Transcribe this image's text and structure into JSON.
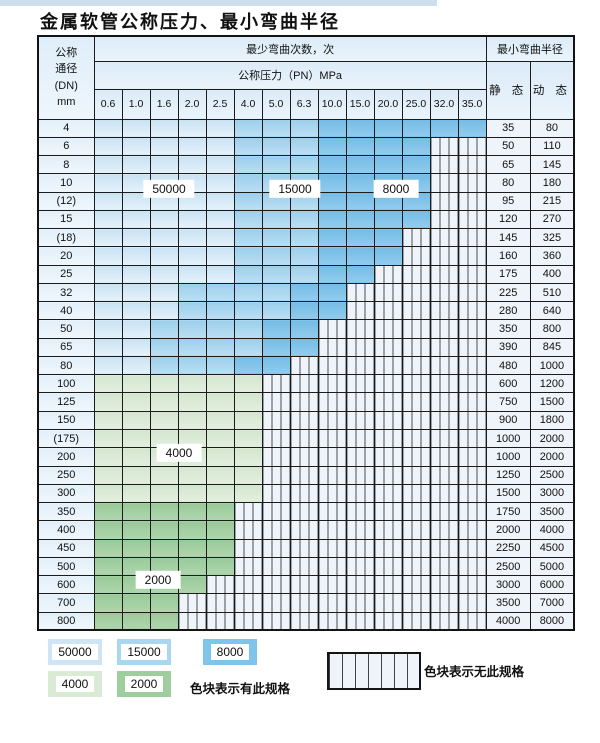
{
  "title": "金属软管公称压力、最小弯曲半径",
  "table": {
    "header": {
      "dn_lines": [
        "公称",
        "通径",
        "(DN)",
        "mm"
      ],
      "cycles_label": "最少弯曲次数，次",
      "radius_label": "最小弯曲半径",
      "pressure_label": "公称压力（PN）MPa",
      "static_label": "静 态",
      "dynamic_label": "动 态",
      "pressures": [
        "0.6",
        "1.0",
        "1.6",
        "2.0",
        "2.5",
        "4.0",
        "5.0",
        "6.3",
        "10.0",
        "15.0",
        "20.0",
        "25.0",
        "32.0",
        "35.0"
      ]
    },
    "cell_legend": {
      "L": "50000 cycles (light blue)",
      "M": "15000 cycles (medium blue)",
      "D": "8000 cycles (dark blue)",
      "G": "4000 cycles (light green)",
      "E": "2000 cycles (medium green)",
      "H": "no specification (hatched)"
    },
    "rows": [
      {
        "dn": "4",
        "cells": "LLLLLMMMDDDDDD",
        "static": "35",
        "dynamic": "80"
      },
      {
        "dn": "6",
        "cells": "LLLLLMMMDDDDHH",
        "static": "50",
        "dynamic": "110"
      },
      {
        "dn": "8",
        "cells": "LLLLLMMMDDDDHH",
        "static": "65",
        "dynamic": "145"
      },
      {
        "dn": "10",
        "cells": "LLLLLMMMDDDDHH",
        "static": "80",
        "dynamic": "180"
      },
      {
        "dn": "(12)",
        "cells": "LLLLLMMMDDDDHH",
        "static": "95",
        "dynamic": "215"
      },
      {
        "dn": "15",
        "cells": "LLLLLMMMDDDDHH",
        "static": "120",
        "dynamic": "270"
      },
      {
        "dn": "(18)",
        "cells": "LLLLLMMMDDDHHH",
        "static": "145",
        "dynamic": "325"
      },
      {
        "dn": "20",
        "cells": "LLLLLMMMDDDHHH",
        "static": "160",
        "dynamic": "360"
      },
      {
        "dn": "25",
        "cells": "LLLLLMMMDDHHHH",
        "static": "175",
        "dynamic": "400"
      },
      {
        "dn": "32",
        "cells": "LLLMMMMDDHHHHH",
        "static": "225",
        "dynamic": "510"
      },
      {
        "dn": "40",
        "cells": "LLLMMMMDDHHHHH",
        "static": "280",
        "dynamic": "640"
      },
      {
        "dn": "50",
        "cells": "LLMMMMDDHHHHHH",
        "static": "350",
        "dynamic": "800"
      },
      {
        "dn": "65",
        "cells": "LLMMMMDDHHHHHH",
        "static": "390",
        "dynamic": "845"
      },
      {
        "dn": "80",
        "cells": "LLMMMDDHHHHHHH",
        "static": "480",
        "dynamic": "1000"
      },
      {
        "dn": "100",
        "cells": "GGGGGGHHHHHHHH",
        "static": "600",
        "dynamic": "1200"
      },
      {
        "dn": "125",
        "cells": "GGGGGGHHHHHHHH",
        "static": "750",
        "dynamic": "1500"
      },
      {
        "dn": "150",
        "cells": "GGGGGGHHHHHHHH",
        "static": "900",
        "dynamic": "1800"
      },
      {
        "dn": "(175)",
        "cells": "GGGGGGHHHHHHHH",
        "static": "1000",
        "dynamic": "2000"
      },
      {
        "dn": "200",
        "cells": "GGGGGGHHHHHHHH",
        "static": "1000",
        "dynamic": "2000"
      },
      {
        "dn": "250",
        "cells": "GGGGGGHHHHHHHH",
        "static": "1250",
        "dynamic": "2500"
      },
      {
        "dn": "300",
        "cells": "GGGGGGHHHHHHHH",
        "static": "1500",
        "dynamic": "3000"
      },
      {
        "dn": "350",
        "cells": "EEEEEHHHHHHHHH",
        "static": "1750",
        "dynamic": "3500"
      },
      {
        "dn": "400",
        "cells": "EEEEEHHHHHHHHH",
        "static": "2000",
        "dynamic": "4000"
      },
      {
        "dn": "450",
        "cells": "EEEEEHHHHHHHHH",
        "static": "2250",
        "dynamic": "4500"
      },
      {
        "dn": "500",
        "cells": "EEEEEHHHHHHHHH",
        "static": "2500",
        "dynamic": "5000"
      },
      {
        "dn": "600",
        "cells": "EEEEHHHHHHHHHH",
        "static": "3000",
        "dynamic": "6000"
      },
      {
        "dn": "700",
        "cells": "EEEHHHHHHHHHHH",
        "static": "3500",
        "dynamic": "7000"
      },
      {
        "dn": "800",
        "cells": "EEEHHHHHHHHHHH",
        "static": "4000",
        "dynamic": "8000"
      }
    ]
  },
  "overlay_labels": {
    "l50000": "50000",
    "l15000": "15000",
    "l8000": "8000",
    "l4000": "4000",
    "l2000": "2000"
  },
  "legend": {
    "items": [
      {
        "value": "50000",
        "color": "#cfe5f6"
      },
      {
        "value": "15000",
        "color": "#a9d6f0"
      },
      {
        "value": "8000",
        "color": "#7fc4ea"
      },
      {
        "value": "4000",
        "color": "#d9ead5"
      },
      {
        "value": "2000",
        "color": "#9ecd9e"
      }
    ],
    "has_spec_text": "色块表示有此规格",
    "no_spec_text": "色块表示无此规格"
  },
  "colors": {
    "light_blue": "#cfe5f6",
    "medium_blue": "#a9d6f0",
    "dark_blue": "#7fc4ea",
    "light_green": "#d9ead5",
    "medium_green": "#9ecd9e",
    "header_bg": "#e3eff9",
    "hatch_bg": "#eef4f9",
    "grid_line": "#1c1c1c",
    "top_strip": "#ccdfee"
  }
}
